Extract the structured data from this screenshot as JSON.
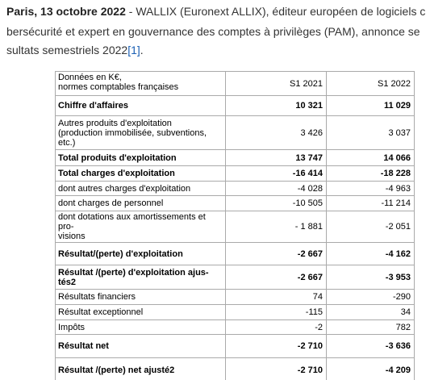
{
  "paragraph": {
    "lead": "Paris, 13 octobre 2022",
    "line1_rest": " - WALLIX (Euronext ALLIX), éditeur européen de logiciels c",
    "line2": "bersécurité et expert en gouvernance des comptes à privilèges (PAM), annonce se",
    "line3": "sultats semestriels 2022",
    "footnote_ref": "[1]",
    "line3_end": "."
  },
  "table": {
    "header": {
      "label": "Données en K€,\nnormes comptables françaises",
      "col1": "S1 2021",
      "col2": "S1 2022"
    },
    "rows": [
      {
        "label": "Chiffre d'affaires",
        "s1_2021": "10 321",
        "s1_2022": "11 029",
        "bold": true
      },
      {
        "label": "Autres produits d'exploitation\n(production immobilisée, subventions,\netc.)",
        "s1_2021": "3 426",
        "s1_2022": "3 037",
        "bold": false
      },
      {
        "label": "Total produits d'exploitation",
        "s1_2021": "13 747",
        "s1_2022": "14 066",
        "bold": true
      },
      {
        "label": "Total charges d'exploitation",
        "s1_2021": "-16 414",
        "s1_2022": "-18 228",
        "bold": true
      },
      {
        "label": "dont autres charges d'exploitation",
        "s1_2021": "-4 028",
        "s1_2022": "-4 963",
        "bold": false
      },
      {
        "label": "dont charges de personnel",
        "s1_2021": "-10 505",
        "s1_2022": "-11 214",
        "bold": false
      },
      {
        "label": "dont dotations aux amortissements et pro-\nvisions",
        "s1_2021": "- 1 881",
        "s1_2022": "-2 051",
        "bold": false
      },
      {
        "label": "Résultat/(perte) d'exploitation",
        "s1_2021": "-2 667",
        "s1_2022": "-4 162",
        "bold": true
      },
      {
        "label": "Résultat /(perte) d'exploitation ajus-\ntés2",
        "s1_2021": "-2 667",
        "s1_2022": "-3 953",
        "bold": true
      },
      {
        "label": "Résultats financiers",
        "s1_2021": "74",
        "s1_2022": "-290",
        "bold": false
      },
      {
        "label": "Résultat exceptionnel",
        "s1_2021": "-115",
        "s1_2022": "34",
        "bold": false
      },
      {
        "label": "Impôts",
        "s1_2021": "-2",
        "s1_2022": "782",
        "bold": false
      },
      {
        "label": "Résultat net",
        "s1_2021": "-2 710",
        "s1_2022": "-3 636",
        "bold": true
      },
      {
        "label": "Résultat /(perte) net ajusté2",
        "s1_2021": "-2 710",
        "s1_2022": "-4 209",
        "bold": true
      }
    ]
  }
}
